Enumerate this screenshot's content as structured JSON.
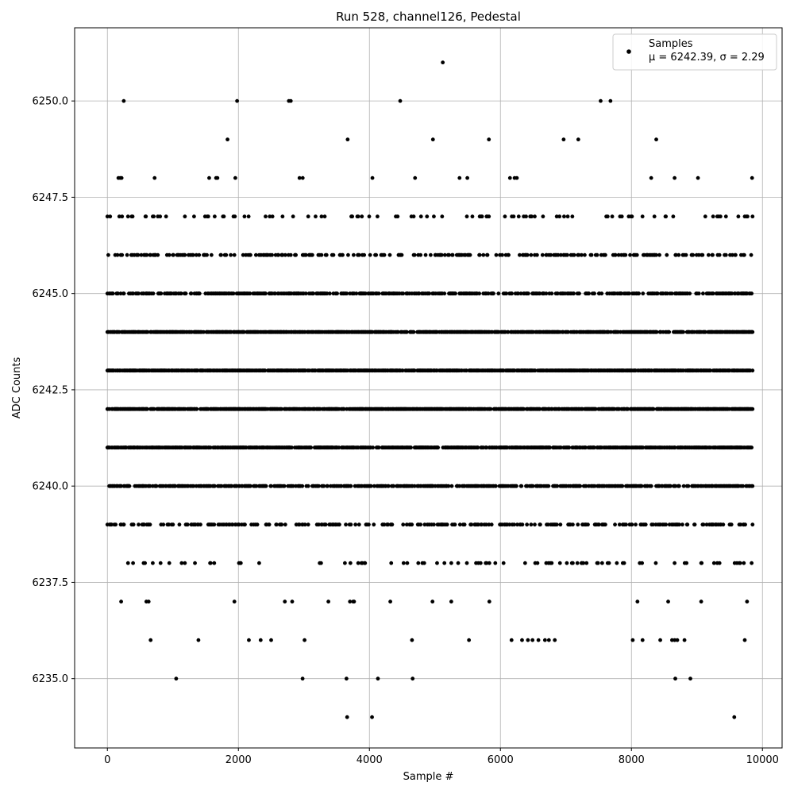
{
  "chart_data": {
    "type": "scatter",
    "title": "Run 528, channel126, Pedestal",
    "xlabel": "Sample #",
    "ylabel": "ADC Counts",
    "xlim": [
      -500,
      10300
    ],
    "ylim": [
      6233.2,
      6251.9
    ],
    "grid": true,
    "legend_position": "top-right",
    "marker_color": "#000000",
    "xticks": [
      0,
      2000,
      4000,
      6000,
      8000,
      10000
    ],
    "xtick_labels": [
      "0",
      "2000",
      "4000",
      "6000",
      "8000",
      "10000"
    ],
    "yticks": [
      6235.0,
      6237.5,
      6240.0,
      6242.5,
      6245.0,
      6247.5,
      6250.0
    ],
    "ytick_labels": [
      "6235.0",
      "6237.5",
      "6240.0",
      "6242.5",
      "6245.0",
      "6247.5",
      "6250.0"
    ],
    "series": [
      {
        "name": "Samples",
        "stats_label": "μ = 6242.39, σ = 2.29",
        "x_range": [
          0,
          9850
        ],
        "n_points": 9851,
        "levels": [
          {
            "y": 6234,
            "x": [
              3660,
              4040,
              9570
            ]
          },
          {
            "y": 6235,
            "x": [
              1050,
              2980,
              3650,
              4130,
              4660,
              8670,
              8900
            ]
          },
          {
            "y": 6236,
            "x": [
              660,
              1390,
              2160,
              2340,
              2500,
              3010,
              4650,
              5520,
              6170,
              6330,
              6420,
              6490,
              6580,
              6680,
              6740,
              6830,
              8020,
              8170,
              8440,
              8620,
              8660,
              8700,
              8810,
              9730
            ]
          },
          {
            "y": 6251,
            "x": [
              5120
            ]
          },
          {
            "y": 6250,
            "x": [
              250,
              1980,
              2770,
              2800,
              4470,
              7530,
              7680
            ]
          }
        ],
        "bands": [
          {
            "y": 6249,
            "density": 0.0035
          },
          {
            "y": 6248,
            "density": 0.018
          },
          {
            "y": 6247,
            "density": 0.07
          },
          {
            "y": 6246,
            "density": 0.18
          },
          {
            "y": 6245,
            "density": 0.33
          },
          {
            "y": 6244,
            "density": 0.55
          },
          {
            "y": 6243,
            "density": 0.62
          },
          {
            "y": 6242,
            "density": 0.6
          },
          {
            "y": 6241,
            "density": 0.5
          },
          {
            "y": 6240,
            "density": 0.34
          },
          {
            "y": 6239,
            "density": 0.19
          },
          {
            "y": 6238,
            "density": 0.06
          },
          {
            "y": 6237,
            "density": 0.014
          }
        ]
      }
    ]
  }
}
